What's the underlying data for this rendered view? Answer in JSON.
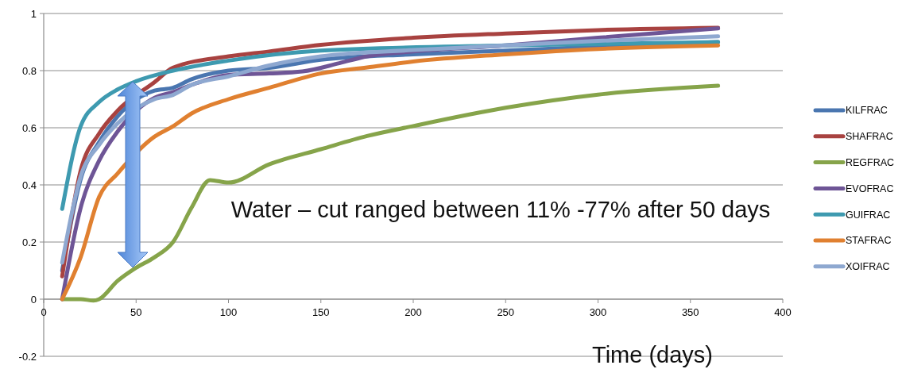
{
  "chart_data": {
    "type": "line",
    "xlabel": "Time (days)",
    "xlim": [
      0,
      400
    ],
    "xticks": [
      0,
      50,
      100,
      150,
      200,
      250,
      300,
      350,
      400
    ],
    "ylim": [
      -0.2,
      1
    ],
    "yticks": [
      -0.2,
      0,
      0.2,
      0.4,
      0.6,
      0.8,
      1
    ],
    "grid": "y",
    "legend": "right",
    "marker": "none",
    "line_style": "solid",
    "annotations": [
      "Water – cut ranged between 11% -77% after 50 days"
    ],
    "series": [
      {
        "name": "KILFRAC",
        "color": "#4a76b0",
        "x": [
          10,
          20,
          30,
          40,
          60,
          70,
          80,
          100,
          122,
          150,
          200,
          250,
          300,
          365
        ],
        "values": [
          0.1,
          0.42,
          0.55,
          0.64,
          0.73,
          0.74,
          0.77,
          0.8,
          0.81,
          0.838,
          0.857,
          0.87,
          0.884,
          0.9
        ]
      },
      {
        "name": "SHAFRAC",
        "color": "#a84240",
        "x": [
          10,
          20,
          30,
          40,
          60,
          70,
          100,
          122,
          150,
          200,
          250,
          300,
          365
        ],
        "values": [
          0.08,
          0.45,
          0.58,
          0.66,
          0.76,
          0.81,
          0.85,
          0.867,
          0.89,
          0.915,
          0.93,
          0.942,
          0.95
        ]
      },
      {
        "name": "REGFRAC",
        "color": "#86a44a",
        "x": [
          10,
          20,
          27,
          30,
          40,
          50,
          60,
          70,
          80,
          90,
          100,
          122,
          150,
          175,
          200,
          250,
          300,
          365
        ],
        "values": [
          0,
          0,
          -0.005,
          0,
          0.064,
          0.11,
          0.147,
          0.2,
          0.32,
          0.417,
          0.408,
          0.472,
          0.525,
          0.571,
          0.606,
          0.67,
          0.716,
          0.747
        ]
      },
      {
        "name": "EVOFRAC",
        "color": "#6e5596",
        "x": [
          10,
          20,
          30,
          40,
          60,
          70,
          80,
          100,
          122,
          140,
          160,
          175,
          200,
          250,
          300,
          365
        ],
        "values": [
          0,
          0.32,
          0.485,
          0.587,
          0.705,
          0.725,
          0.75,
          0.785,
          0.79,
          0.797,
          0.826,
          0.85,
          0.867,
          0.888,
          0.915,
          0.948
        ]
      },
      {
        "name": "GUIFRAC",
        "color": "#3e9ab0",
        "x": [
          10,
          20,
          30,
          40,
          50,
          70,
          100,
          150,
          250,
          365
        ],
        "values": [
          0.316,
          0.605,
          0.69,
          0.734,
          0.763,
          0.8,
          0.835,
          0.87,
          0.888,
          0.9
        ]
      },
      {
        "name": "STAFRAC",
        "color": "#e08030",
        "x": [
          10,
          20,
          30,
          40,
          60,
          70,
          80,
          100,
          122,
          150,
          175,
          200,
          250,
          300,
          365
        ],
        "values": [
          0,
          0.147,
          0.358,
          0.44,
          0.569,
          0.605,
          0.65,
          0.7,
          0.74,
          0.79,
          0.811,
          0.832,
          0.857,
          0.876,
          0.888
        ]
      },
      {
        "name": "XOIFRAC",
        "color": "#8ea8d0",
        "x": [
          10,
          20,
          30,
          40,
          60,
          70,
          80,
          100,
          122,
          150,
          200,
          250,
          300,
          365
        ],
        "values": [
          0.128,
          0.43,
          0.54,
          0.615,
          0.7,
          0.715,
          0.75,
          0.78,
          0.818,
          0.85,
          0.872,
          0.888,
          0.904,
          0.92
        ]
      }
    ]
  }
}
